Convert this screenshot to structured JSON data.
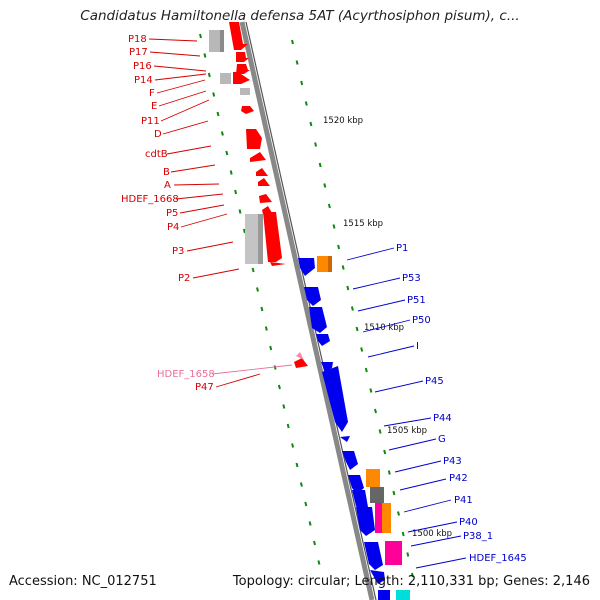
{
  "title": "Candidatus Hamiltonella defensa 5AT (Acyrthosiphon pisum), c...",
  "accession": "Accession: NC_012751",
  "summary": "Topology: circular; Length: 2,110,331 bp; Genes: 2,146",
  "colors": {
    "left_labels": "#d40000",
    "right_labels": "#0000cc",
    "faded_label": "#e8709a",
    "backbone": "#888888",
    "tick_marks": "#118811",
    "gene_red": "#ff0000",
    "gene_blue": "#0000ee",
    "gene_orange": "#ff8800",
    "gene_magenta": "#ff0099",
    "gene_gray": "#b0b0b0"
  },
  "scale_marks": [
    "1520 kbp",
    "1515 kbp",
    "1510 kbp",
    "1505 kbp",
    "1500 kbp"
  ],
  "left_labels": [
    "P18",
    "P17",
    "P16",
    "P14",
    "F",
    "E",
    "P11",
    "D",
    "cdtB",
    "B",
    "A",
    "HDEF_1668",
    "P5",
    "P4",
    "P3",
    "P2",
    "HDEF_1658",
    "P47"
  ],
  "right_labels": [
    "P1",
    "P53",
    "P51",
    "P50",
    "I",
    "P45",
    "P44",
    "G",
    "P43",
    "P42",
    "P41",
    "P40",
    "P38_1",
    "HDEF_1645"
  ]
}
